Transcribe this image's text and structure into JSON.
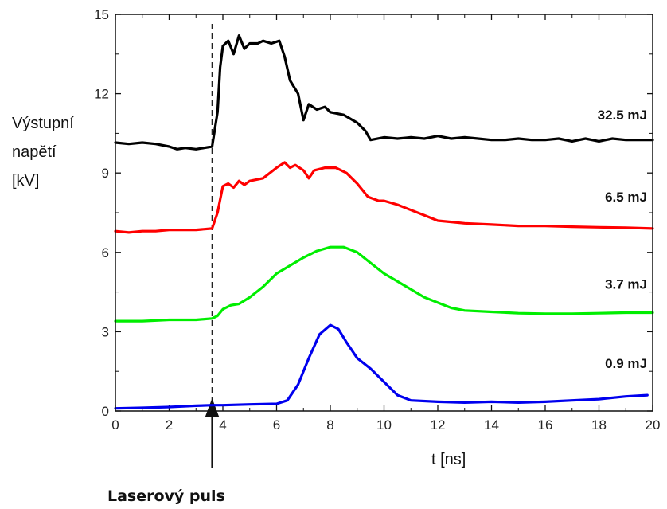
{
  "chart_data": {
    "type": "line",
    "title": "",
    "xlabel": "t [ns]",
    "ylabel": [
      "Výstupní",
      "napětí",
      "[kV]"
    ],
    "xlim": [
      0,
      20
    ],
    "ylim": [
      0,
      15
    ],
    "xticks": [
      "0",
      "2",
      "4",
      "6",
      "8",
      "10",
      "12",
      "14",
      "16",
      "18",
      "20"
    ],
    "yticks": [
      "0",
      "3",
      "6",
      "9",
      "12",
      "15"
    ],
    "grid": false,
    "marker": {
      "x": 3.6,
      "label": "Laserový puls"
    },
    "series": [
      {
        "name": "32.5 mJ",
        "color": "#000000",
        "points": [
          [
            0,
            10.15
          ],
          [
            0.5,
            10.1
          ],
          [
            1,
            10.15
          ],
          [
            1.5,
            10.1
          ],
          [
            2,
            10.0
          ],
          [
            2.3,
            9.9
          ],
          [
            2.6,
            9.95
          ],
          [
            3,
            9.9
          ],
          [
            3.3,
            9.95
          ],
          [
            3.6,
            10.0
          ],
          [
            3.8,
            11.3
          ],
          [
            3.9,
            13.0
          ],
          [
            4.0,
            13.8
          ],
          [
            4.2,
            14.0
          ],
          [
            4.4,
            13.5
          ],
          [
            4.6,
            14.2
          ],
          [
            4.8,
            13.7
          ],
          [
            5.0,
            13.9
          ],
          [
            5.3,
            13.9
          ],
          [
            5.5,
            14.0
          ],
          [
            5.8,
            13.9
          ],
          [
            6.1,
            14.0
          ],
          [
            6.3,
            13.4
          ],
          [
            6.5,
            12.5
          ],
          [
            6.8,
            12.0
          ],
          [
            7.0,
            11.0
          ],
          [
            7.2,
            11.6
          ],
          [
            7.5,
            11.4
          ],
          [
            7.8,
            11.5
          ],
          [
            8.0,
            11.3
          ],
          [
            8.5,
            11.2
          ],
          [
            9.0,
            10.9
          ],
          [
            9.3,
            10.6
          ],
          [
            9.5,
            10.25
          ],
          [
            10,
            10.35
          ],
          [
            10.5,
            10.3
          ],
          [
            11,
            10.35
          ],
          [
            11.5,
            10.3
          ],
          [
            12,
            10.4
          ],
          [
            12.5,
            10.3
          ],
          [
            13,
            10.35
          ],
          [
            13.5,
            10.3
          ],
          [
            14,
            10.25
          ],
          [
            14.5,
            10.25
          ],
          [
            15,
            10.3
          ],
          [
            15.5,
            10.25
          ],
          [
            16,
            10.25
          ],
          [
            16.5,
            10.3
          ],
          [
            17,
            10.2
          ],
          [
            17.5,
            10.3
          ],
          [
            18,
            10.2
          ],
          [
            18.5,
            10.3
          ],
          [
            19,
            10.25
          ],
          [
            20,
            10.25
          ]
        ]
      },
      {
        "name": "6.5 mJ",
        "color": "#ff0000",
        "points": [
          [
            0,
            6.8
          ],
          [
            0.5,
            6.75
          ],
          [
            1,
            6.8
          ],
          [
            1.5,
            6.8
          ],
          [
            2,
            6.85
          ],
          [
            2.5,
            6.85
          ],
          [
            3,
            6.85
          ],
          [
            3.6,
            6.9
          ],
          [
            3.8,
            7.5
          ],
          [
            4.0,
            8.5
          ],
          [
            4.2,
            8.6
          ],
          [
            4.4,
            8.45
          ],
          [
            4.6,
            8.7
          ],
          [
            4.8,
            8.55
          ],
          [
            5.0,
            8.7
          ],
          [
            5.5,
            8.8
          ],
          [
            6.0,
            9.2
          ],
          [
            6.3,
            9.4
          ],
          [
            6.5,
            9.2
          ],
          [
            6.7,
            9.3
          ],
          [
            7.0,
            9.1
          ],
          [
            7.2,
            8.8
          ],
          [
            7.4,
            9.1
          ],
          [
            7.8,
            9.2
          ],
          [
            8.2,
            9.2
          ],
          [
            8.6,
            9.0
          ],
          [
            9.0,
            8.6
          ],
          [
            9.4,
            8.1
          ],
          [
            9.8,
            7.95
          ],
          [
            10,
            7.95
          ],
          [
            10.5,
            7.8
          ],
          [
            11,
            7.6
          ],
          [
            11.5,
            7.4
          ],
          [
            12,
            7.2
          ],
          [
            12.5,
            7.15
          ],
          [
            13,
            7.1
          ],
          [
            14,
            7.05
          ],
          [
            15,
            7.0
          ],
          [
            16,
            7.0
          ],
          [
            17,
            6.97
          ],
          [
            18,
            6.95
          ],
          [
            19,
            6.93
          ],
          [
            20,
            6.9
          ]
        ]
      },
      {
        "name": "3.7 mJ",
        "color": "#00ee00",
        "points": [
          [
            0,
            3.4
          ],
          [
            1,
            3.4
          ],
          [
            2,
            3.45
          ],
          [
            3,
            3.45
          ],
          [
            3.6,
            3.5
          ],
          [
            3.8,
            3.6
          ],
          [
            4.0,
            3.85
          ],
          [
            4.3,
            4.0
          ],
          [
            4.6,
            4.05
          ],
          [
            5.0,
            4.3
          ],
          [
            5.5,
            4.7
          ],
          [
            6.0,
            5.2
          ],
          [
            6.5,
            5.5
          ],
          [
            7.0,
            5.8
          ],
          [
            7.5,
            6.05
          ],
          [
            8.0,
            6.2
          ],
          [
            8.5,
            6.2
          ],
          [
            9.0,
            6.0
          ],
          [
            9.5,
            5.6
          ],
          [
            10,
            5.2
          ],
          [
            10.5,
            4.9
          ],
          [
            11,
            4.6
          ],
          [
            11.5,
            4.3
          ],
          [
            12,
            4.1
          ],
          [
            12.5,
            3.9
          ],
          [
            13,
            3.8
          ],
          [
            14,
            3.75
          ],
          [
            15,
            3.7
          ],
          [
            16,
            3.68
          ],
          [
            17,
            3.68
          ],
          [
            18,
            3.7
          ],
          [
            19,
            3.72
          ],
          [
            20,
            3.72
          ]
        ]
      },
      {
        "name": "0.9 mJ",
        "color": "#0000ee",
        "points": [
          [
            0,
            0.1
          ],
          [
            1,
            0.12
          ],
          [
            2,
            0.15
          ],
          [
            3,
            0.2
          ],
          [
            3.6,
            0.22
          ],
          [
            4,
            0.22
          ],
          [
            5,
            0.25
          ],
          [
            6,
            0.27
          ],
          [
            6.4,
            0.4
          ],
          [
            6.8,
            1.0
          ],
          [
            7.2,
            2.0
          ],
          [
            7.6,
            2.9
          ],
          [
            8.0,
            3.25
          ],
          [
            8.3,
            3.1
          ],
          [
            8.6,
            2.6
          ],
          [
            9.0,
            2.0
          ],
          [
            9.5,
            1.6
          ],
          [
            10,
            1.1
          ],
          [
            10.5,
            0.6
          ],
          [
            11,
            0.4
          ],
          [
            12,
            0.35
          ],
          [
            13,
            0.32
          ],
          [
            14,
            0.35
          ],
          [
            15,
            0.32
          ],
          [
            16,
            0.35
          ],
          [
            17,
            0.4
          ],
          [
            18,
            0.45
          ],
          [
            19,
            0.55
          ],
          [
            19.8,
            0.6
          ]
        ]
      }
    ]
  }
}
